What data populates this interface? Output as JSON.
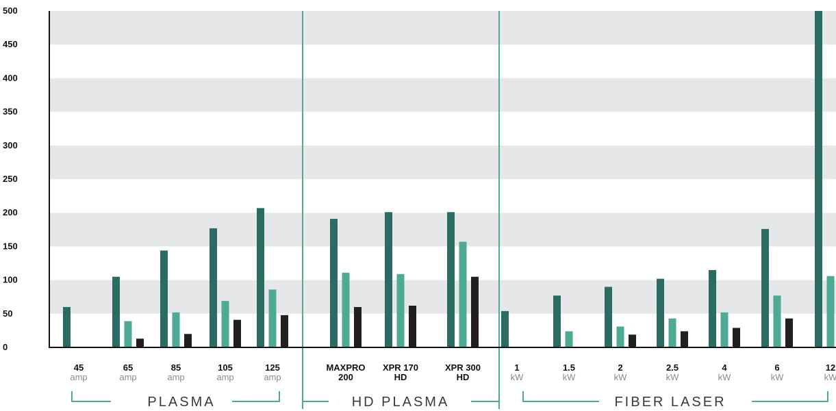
{
  "chart_data": {
    "type": "bar",
    "ylim": [
      0,
      500
    ],
    "yticks": [
      0,
      50,
      100,
      150,
      200,
      250,
      300,
      350,
      400,
      450,
      500
    ],
    "grid": "alternating horizontal bands",
    "categories": [
      {
        "main": "45",
        "sub": "amp",
        "sub_style": "unit"
      },
      {
        "main": "65",
        "sub": "amp",
        "sub_style": "unit"
      },
      {
        "main": "85",
        "sub": "amp",
        "sub_style": "unit"
      },
      {
        "main": "105",
        "sub": "amp",
        "sub_style": "unit"
      },
      {
        "main": "125",
        "sub": "amp",
        "sub_style": "unit"
      },
      {
        "main": "MAXPRO",
        "sub": "200",
        "sub_style": "main"
      },
      {
        "main": "XPR 170",
        "sub": "HD",
        "sub_style": "main"
      },
      {
        "main": "XPR 300",
        "sub": "HD",
        "sub_style": "main"
      },
      {
        "main": "1",
        "sub": "kW",
        "sub_style": "unit"
      },
      {
        "main": "1.5",
        "sub": "kW",
        "sub_style": "unit"
      },
      {
        "main": "2",
        "sub": "kW",
        "sub_style": "unit"
      },
      {
        "main": "2.5",
        "sub": "kW",
        "sub_style": "unit"
      },
      {
        "main": "4",
        "sub": "kW",
        "sub_style": "unit"
      },
      {
        "main": "6",
        "sub": "kW",
        "sub_style": "unit"
      },
      {
        "main": "12",
        "sub": "kW",
        "sub_style": "unit"
      }
    ],
    "series": [
      {
        "color": "#2c6b61",
        "values": [
          60,
          105,
          144,
          177,
          207,
          191,
          201,
          201,
          54,
          77,
          90,
          102,
          115,
          176,
          500
        ]
      },
      {
        "color": "#4eaa94",
        "values": [
          null,
          39,
          52,
          69,
          86,
          111,
          109,
          157,
          null,
          24,
          31,
          43,
          52,
          77,
          106
        ]
      },
      {
        "color": "#231f20",
        "values": [
          null,
          13,
          20,
          41,
          48,
          60,
          62,
          105,
          null,
          null,
          19,
          24,
          29,
          43,
          null
        ]
      }
    ],
    "groups": [
      {
        "label": "PLASMA",
        "from": 0,
        "to": 4
      },
      {
        "label": "HD PLASMA",
        "from": 5,
        "to": 7
      },
      {
        "label": "FIBER LASER",
        "from": 8,
        "to": 14
      }
    ],
    "colors": {
      "band": "#e6e7e8",
      "accent": "#4eaa94",
      "axis": "#111111"
    }
  }
}
